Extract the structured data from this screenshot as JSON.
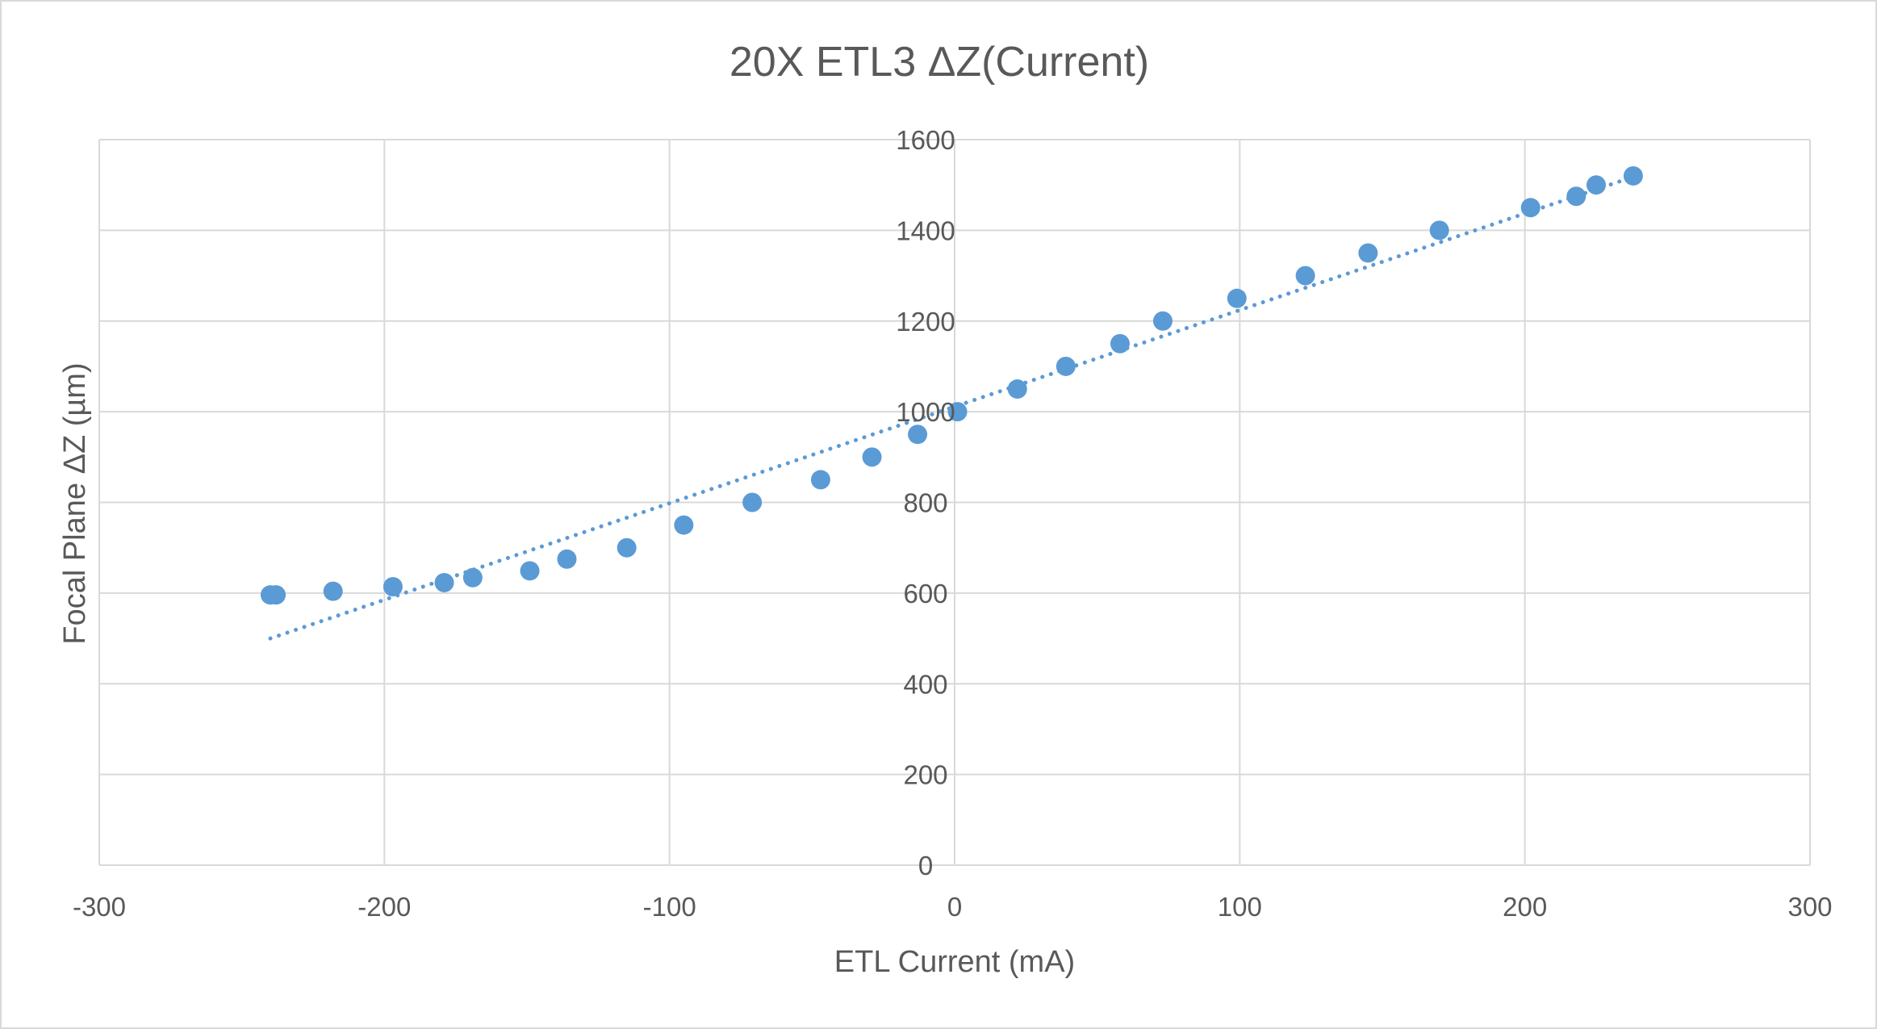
{
  "chart_data": {
    "type": "scatter",
    "title": "20X ETL3 ΔZ(Current)",
    "xlabel": "ETL Current (mA)",
    "ylabel": "Focal Plane ΔZ (µm)",
    "xlim": [
      -300,
      300
    ],
    "ylim": [
      0,
      1600
    ],
    "x_ticks": [
      -300,
      -200,
      -100,
      0,
      100,
      200,
      300
    ],
    "y_ticks": [
      0,
      200,
      400,
      600,
      800,
      1000,
      1200,
      1400,
      1600
    ],
    "x_tick_labels": [
      "-300",
      "-200",
      "-100",
      "0",
      "100",
      "200",
      "300"
    ],
    "y_tick_labels": [
      "0",
      "200",
      "400",
      "600",
      "800",
      "1000",
      "1200",
      "1400",
      "1600"
    ],
    "grid": true,
    "legend": "none",
    "point_color": "#5b9bd5",
    "trendline": {
      "type": "linear",
      "style": "dotted",
      "color": "#5b9bd5",
      "x_range": [
        -240,
        238
      ],
      "y_range": [
        500,
        1518
      ]
    },
    "series": [
      {
        "points": [
          {
            "x": -240,
            "y": 596
          },
          {
            "x": -238,
            "y": 596
          },
          {
            "x": -218,
            "y": 604
          },
          {
            "x": -197,
            "y": 614
          },
          {
            "x": -179,
            "y": 623
          },
          {
            "x": -169,
            "y": 634
          },
          {
            "x": -149,
            "y": 649
          },
          {
            "x": -136,
            "y": 675
          },
          {
            "x": -115,
            "y": 700
          },
          {
            "x": -95,
            "y": 750
          },
          {
            "x": -71,
            "y": 800
          },
          {
            "x": -47,
            "y": 850
          },
          {
            "x": -29,
            "y": 900
          },
          {
            "x": -13,
            "y": 950
          },
          {
            "x": 1,
            "y": 1000
          },
          {
            "x": 22,
            "y": 1050
          },
          {
            "x": 39,
            "y": 1100
          },
          {
            "x": 58,
            "y": 1150
          },
          {
            "x": 73,
            "y": 1200
          },
          {
            "x": 99,
            "y": 1250
          },
          {
            "x": 123,
            "y": 1300
          },
          {
            "x": 145,
            "y": 1350
          },
          {
            "x": 170,
            "y": 1400
          },
          {
            "x": 202,
            "y": 1450
          },
          {
            "x": 218,
            "y": 1475
          },
          {
            "x": 225,
            "y": 1500
          },
          {
            "x": 238,
            "y": 1520
          }
        ]
      }
    ]
  }
}
